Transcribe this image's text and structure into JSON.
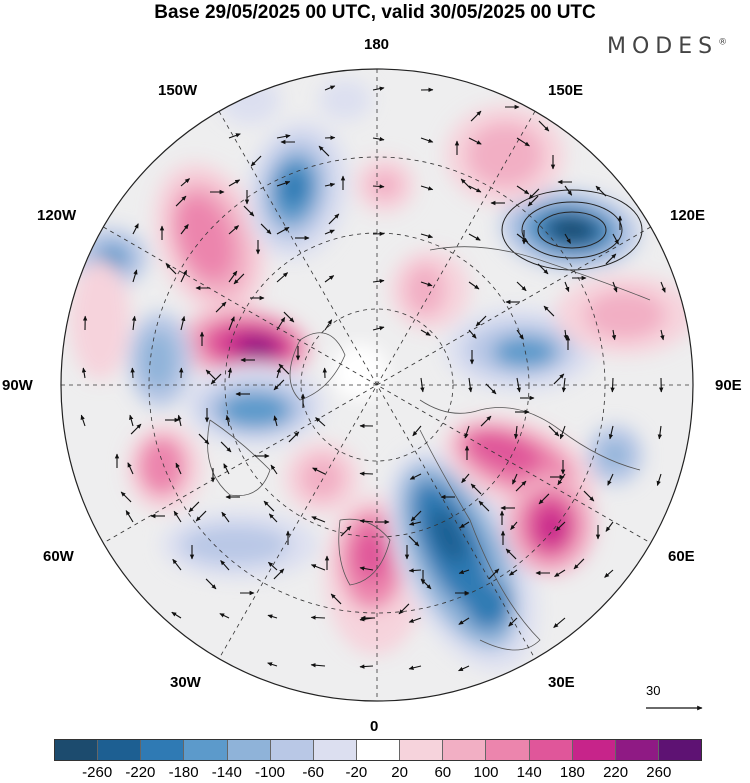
{
  "title": "Base 29/05/2025 00 UTC, valid 30/05/2025 00 UTC",
  "brand": "MODES",
  "brand_mark": "®",
  "longitude_labels": {
    "top": "180",
    "bottom": "0",
    "left": "90W",
    "right": "90E",
    "upper_left_1": "150W",
    "upper_left_2": "120W",
    "upper_right_1": "150E",
    "upper_right_2": "120E",
    "lower_left_1": "60W",
    "lower_left_2": "30W",
    "lower_right_1": "60E",
    "lower_right_2": "30E"
  },
  "reference_vector": "30",
  "colors": {
    "-260": "#1c4b6e",
    "-220": "#1d5f92",
    "-180": "#2f7ab4",
    "-140": "#5c9acb",
    "-100": "#8fb3d9",
    "-60": "#b9c8e6",
    "-20": "#dcdff0",
    "20": "#ffffff",
    "60": "#f6d3dc",
    "100": "#f2afc4",
    "140": "#ec85ad",
    "180": "#e0569a",
    "220": "#c7248a",
    "260": "#8f1a84",
    "top": "#5e1273"
  },
  "colorbar": {
    "swatches": [
      "#1c4b6e",
      "#1d5f92",
      "#2f7ab4",
      "#5c9acb",
      "#8fb3d9",
      "#b9c8e6",
      "#dcdff0",
      "#ffffff",
      "#f6d3dc",
      "#f2afc4",
      "#ec85ad",
      "#e0569a",
      "#c7248a",
      "#8f1a84",
      "#5e1273"
    ],
    "tick_labels": [
      "-260",
      "-220",
      "-180",
      "-140",
      "-100",
      "-60",
      "-20",
      "20",
      "60",
      "100",
      "140",
      "180",
      "220",
      "260"
    ]
  }
}
